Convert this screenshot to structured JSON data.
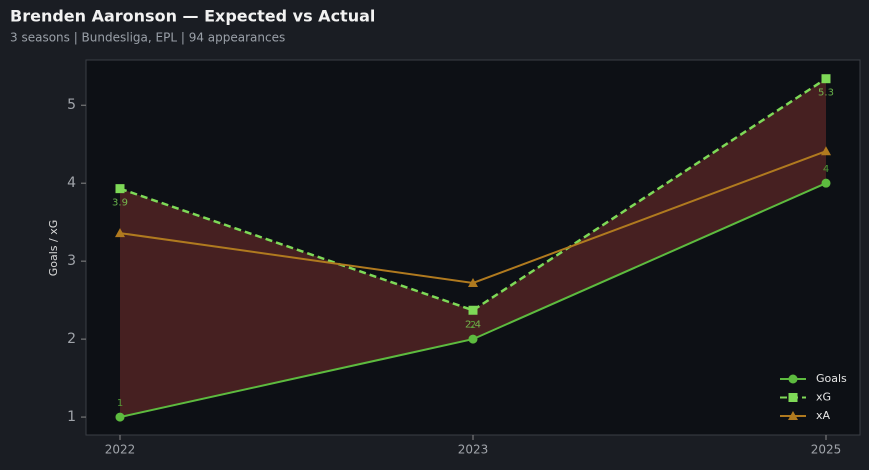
{
  "chart_data": {
    "type": "line",
    "title": "Brenden Aaronson — Expected vs Actual",
    "subtitle": "3 seasons | Bundesliga, EPL | 94 appearances",
    "y_label": "Goals / xG",
    "categories": [
      "2022",
      "2023",
      "2025"
    ],
    "series": [
      {
        "name": "Goals",
        "color": "#5dbb3f",
        "values": [
          1,
          2,
          4
        ],
        "marker": "circle",
        "dashed": false,
        "data_labels": "above"
      },
      {
        "name": "xG",
        "color": "#7ed957",
        "values": [
          3.93,
          2.37,
          5.34
        ],
        "value_labels": [
          "3.9",
          "2.4",
          "5.3"
        ],
        "marker": "square",
        "dashed": true,
        "data_labels": "below"
      },
      {
        "name": "xA",
        "color": "#b07a1f",
        "values": [
          3.36,
          2.72,
          4.41
        ],
        "marker": "triangle",
        "dashed": false
      }
    ],
    "fill_between": {
      "series": [
        0,
        1
      ],
      "color": "#5a2626"
    },
    "ylim": [
      0.77,
      5.58
    ],
    "yticks": [
      1,
      2,
      3,
      4,
      5
    ],
    "legend": "lower right"
  }
}
